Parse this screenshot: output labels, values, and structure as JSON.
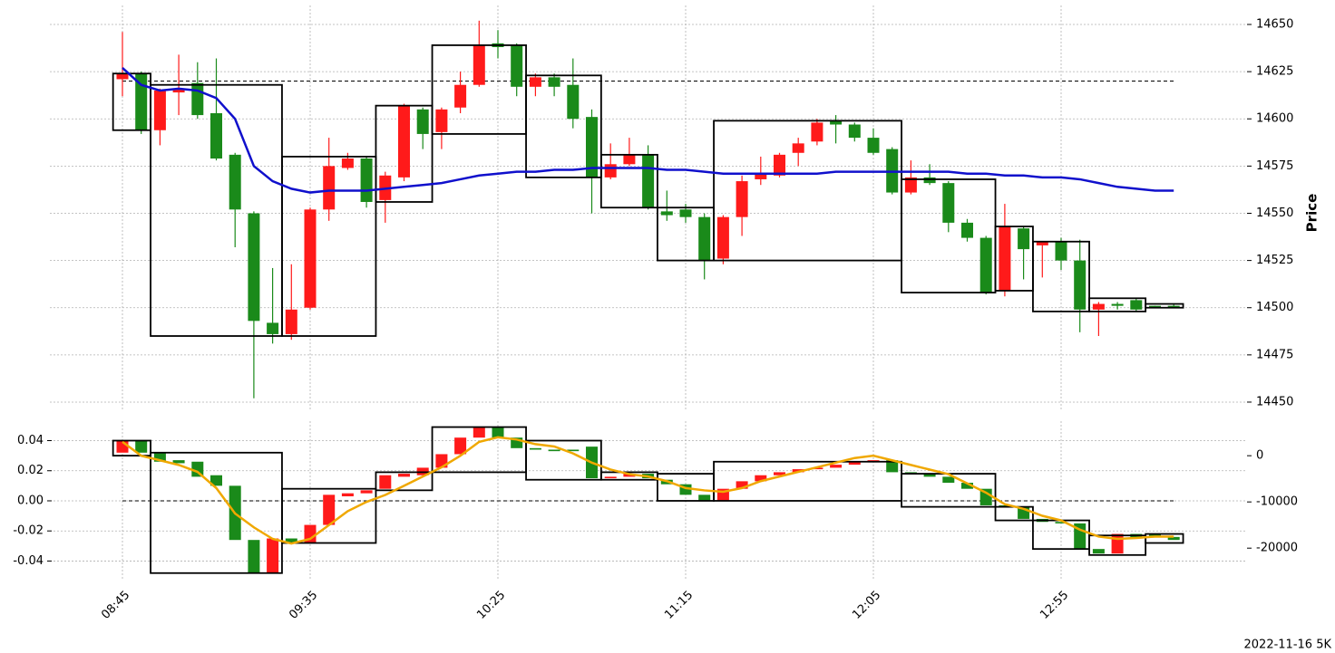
{
  "chart_data": {
    "type": "candlestick",
    "ylabel": "Price",
    "footer": "2022-11-16 5K",
    "categories": [
      "08:45",
      null,
      null,
      null,
      null,
      null,
      null,
      null,
      null,
      null,
      "09:35",
      null,
      null,
      null,
      null,
      null,
      null,
      null,
      null,
      null,
      "10:25",
      null,
      null,
      null,
      null,
      null,
      null,
      null,
      null,
      null,
      "11:15",
      null,
      null,
      null,
      null,
      null,
      null,
      null,
      null,
      null,
      "12:05",
      null,
      null,
      null,
      null,
      null,
      null,
      null,
      null,
      null,
      "12:55",
      null,
      null,
      null,
      null,
      null,
      null
    ],
    "open": [
      14621,
      14624,
      14594,
      14614,
      14619,
      14603,
      14581,
      14550,
      14492,
      14486,
      14500,
      14552,
      14574,
      14579,
      14557,
      14569,
      14605,
      14593,
      14606,
      14618,
      14640,
      14639,
      14617,
      14622,
      14618,
      14601,
      14569,
      14576,
      14581,
      14551,
      14552,
      14548,
      14526,
      14548,
      14568,
      14570,
      14582,
      14588,
      14599,
      14597,
      14590,
      14584,
      14561,
      14569,
      14566,
      14545,
      14537,
      14509,
      14542,
      14533,
      14535,
      14525,
      14499,
      14502,
      14504,
      14501,
      14501
    ],
    "high": [
      14646,
      14625,
      14616,
      14634,
      14630,
      14632,
      14582,
      14551,
      14521,
      14523,
      14553,
      14590,
      14582,
      14580,
      14572,
      14608,
      14606,
      14606,
      14625,
      14652,
      14647,
      14640,
      14624,
      14624,
      14632,
      14605,
      14587,
      14590,
      14586,
      14562,
      14555,
      14550,
      14549,
      14570,
      14580,
      14582,
      14590,
      14600,
      14602,
      14598,
      14595,
      14585,
      14578,
      14576,
      14567,
      14547,
      14538,
      14555,
      14543,
      14535,
      14537,
      14536,
      14503,
      14503,
      14505,
      14501,
      14502
    ],
    "low": [
      14612,
      14592,
      14586,
      14602,
      14600,
      14578,
      14532,
      14452,
      14481,
      14483,
      14499,
      14546,
      14573,
      14553,
      14545,
      14567,
      14584,
      14584,
      14603,
      14617,
      14632,
      14612,
      14612,
      14612,
      14595,
      14550,
      14568,
      14575,
      14552,
      14546,
      14545,
      14515,
      14523,
      14538,
      14565,
      14569,
      14575,
      14586,
      14587,
      14588,
      14581,
      14560,
      14560,
      14565,
      14540,
      14535,
      14507,
      14506,
      14515,
      14516,
      14520,
      14487,
      14485,
      14499,
      14498,
      14500,
      14500
    ],
    "close": [
      14624,
      14594,
      14615,
      14616,
      14602,
      14579,
      14552,
      14493,
      14486,
      14499,
      14552,
      14575,
      14579,
      14556,
      14570,
      14607,
      14592,
      14605,
      14618,
      14639,
      14638,
      14617,
      14622,
      14617,
      14600,
      14569,
      14576,
      14581,
      14553,
      14549,
      14548,
      14525,
      14548,
      14567,
      14571,
      14581,
      14587,
      14598,
      14597,
      14590,
      14582,
      14561,
      14569,
      14566,
      14545,
      14537,
      14508,
      14543,
      14531,
      14535,
      14525,
      14499,
      14502,
      14501,
      14499,
      14500,
      14500
    ],
    "up_color": "#ff1a1a",
    "down_color": "#1a8a1a",
    "ylim": [
      14445,
      14660
    ],
    "yticks": [
      14450,
      14475,
      14500,
      14525,
      14550,
      14575,
      14600,
      14625,
      14650
    ],
    "grid": true,
    "ma": {
      "color": "#1010cc",
      "values": [
        14627,
        14618,
        14615,
        14616,
        14615,
        14611,
        14600,
        14575,
        14567,
        14563,
        14561,
        14562,
        14562,
        14562,
        14563,
        14564,
        14565,
        14566,
        14568,
        14570,
        14571,
        14572,
        14572,
        14573,
        14573,
        14574,
        14574,
        14574,
        14574,
        14573,
        14573,
        14572,
        14571,
        14571,
        14571,
        14571,
        14571,
        14571,
        14572,
        14572,
        14572,
        14572,
        14572,
        14572,
        14572,
        14571,
        14571,
        14570,
        14570,
        14569,
        14569,
        14568,
        14566,
        14564,
        14563,
        14562,
        14562
      ]
    },
    "hline": 14620,
    "boxes": [
      {
        "from": 0,
        "to": 1,
        "low": 14594,
        "high": 14624
      },
      {
        "from": 2,
        "to": 8,
        "low": 14485,
        "high": 14618
      },
      {
        "from": 9,
        "to": 13,
        "low": 14485,
        "high": 14580
      },
      {
        "from": 14,
        "to": 16,
        "low": 14556,
        "high": 14607
      },
      {
        "from": 17,
        "to": 21,
        "low": 14592,
        "high": 14639
      },
      {
        "from": 22,
        "to": 25,
        "low": 14569,
        "high": 14623
      },
      {
        "from": 26,
        "to": 28,
        "low": 14553,
        "high": 14581
      },
      {
        "from": 29,
        "to": 31,
        "low": 14525,
        "high": 14553
      },
      {
        "from": 32,
        "to": 41,
        "low": 14525,
        "high": 14599
      },
      {
        "from": 42,
        "to": 46,
        "low": 14508,
        "high": 14568
      },
      {
        "from": 47,
        "to": 48,
        "low": 14509,
        "high": 14543
      },
      {
        "from": 49,
        "to": 51,
        "low": 14498,
        "high": 14535
      },
      {
        "from": 52,
        "to": 54,
        "low": 14498,
        "high": 14505
      },
      {
        "from": 55,
        "to": 56,
        "low": 14500,
        "high": 14502
      }
    ],
    "indicator": {
      "ylim": [
        -0.052,
        0.053
      ],
      "yticks": [
        -0.04,
        -0.02,
        {
          "value": 0,
          "label": "0.00"
        },
        0.02,
        0.04
      ],
      "y2lim": [
        -26700,
        7500
      ],
      "y2ticks": [
        -20000,
        -10000,
        0
      ],
      "open": [
        0.032,
        0.04,
        0.032,
        0.027,
        0.026,
        0.017,
        0.01,
        -0.026,
        -0.048,
        -0.025,
        -0.028,
        -0.016,
        0.003,
        0.005,
        0.008,
        0.016,
        0.017,
        0.022,
        0.031,
        0.042,
        0.049,
        0.042,
        0.035,
        0.034,
        0.034,
        0.036,
        0.015,
        0.016,
        0.018,
        0.014,
        0.011,
        0.004,
        0.0,
        0.008,
        0.013,
        0.017,
        0.019,
        0.021,
        0.022,
        0.024,
        0.026,
        0.027,
        0.019,
        0.018,
        0.016,
        0.012,
        0.008,
        -0.003,
        -0.004,
        -0.012,
        -0.014,
        -0.015,
        -0.032,
        -0.035,
        -0.022,
        -0.022,
        -0.024
      ],
      "close": [
        0.04,
        0.032,
        0.026,
        0.025,
        0.016,
        0.01,
        -0.026,
        -0.048,
        -0.025,
        -0.028,
        -0.016,
        0.004,
        0.005,
        0.007,
        0.017,
        0.018,
        0.022,
        0.031,
        0.042,
        0.049,
        0.042,
        0.035,
        0.034,
        0.033,
        0.033,
        0.015,
        0.016,
        0.018,
        0.015,
        0.011,
        0.004,
        0.0,
        0.008,
        0.013,
        0.017,
        0.019,
        0.021,
        0.022,
        0.024,
        0.026,
        0.027,
        0.019,
        0.018,
        0.016,
        0.012,
        0.008,
        -0.003,
        -0.004,
        -0.012,
        -0.014,
        -0.015,
        -0.032,
        -0.035,
        -0.022,
        -0.025,
        -0.024,
        -0.026
      ],
      "line": {
        "color": "#f0a800",
        "axis": "y2",
        "values": [
          3000,
          0,
          -1000,
          -2000,
          -3500,
          -7000,
          -12500,
          -15500,
          -18000,
          -19000,
          -18000,
          -15000,
          -12000,
          -10000,
          -8500,
          -6500,
          -4500,
          -2500,
          0,
          3000,
          4000,
          3500,
          2500,
          2000,
          500,
          -1500,
          -3000,
          -4000,
          -4500,
          -5500,
          -7000,
          -7500,
          -7800,
          -7000,
          -5500,
          -4500,
          -3500,
          -2500,
          -1500,
          -500,
          0,
          -1000,
          -2000,
          -3000,
          -4000,
          -6000,
          -8000,
          -10500,
          -11500,
          -13000,
          -14000,
          -16000,
          -17500,
          -18000,
          -17800,
          -17500,
          -17500
        ]
      },
      "hline": 0,
      "boxes": [
        {
          "from": 0,
          "to": 1,
          "low": 0.03,
          "high": 0.04
        },
        {
          "from": 2,
          "to": 8,
          "low": -0.048,
          "high": 0.032
        },
        {
          "from": 9,
          "to": 13,
          "low": -0.028,
          "high": 0.008
        },
        {
          "from": 14,
          "to": 16,
          "low": 0.007,
          "high": 0.019
        },
        {
          "from": 17,
          "to": 21,
          "low": 0.019,
          "high": 0.049
        },
        {
          "from": 22,
          "to": 25,
          "low": 0.014,
          "high": 0.04
        },
        {
          "from": 26,
          "to": 28,
          "low": 0.014,
          "high": 0.019
        },
        {
          "from": 29,
          "to": 31,
          "low": 0.0,
          "high": 0.018
        },
        {
          "from": 32,
          "to": 41,
          "low": 0.0,
          "high": 0.026
        },
        {
          "from": 42,
          "to": 46,
          "low": -0.004,
          "high": 0.018
        },
        {
          "from": 47,
          "to": 48,
          "low": -0.013,
          "high": -0.004
        },
        {
          "from": 49,
          "to": 51,
          "low": -0.032,
          "high": -0.013
        },
        {
          "from": 52,
          "to": 54,
          "low": -0.036,
          "high": -0.023
        },
        {
          "from": 55,
          "to": 56,
          "low": -0.028,
          "high": -0.022
        }
      ]
    }
  }
}
